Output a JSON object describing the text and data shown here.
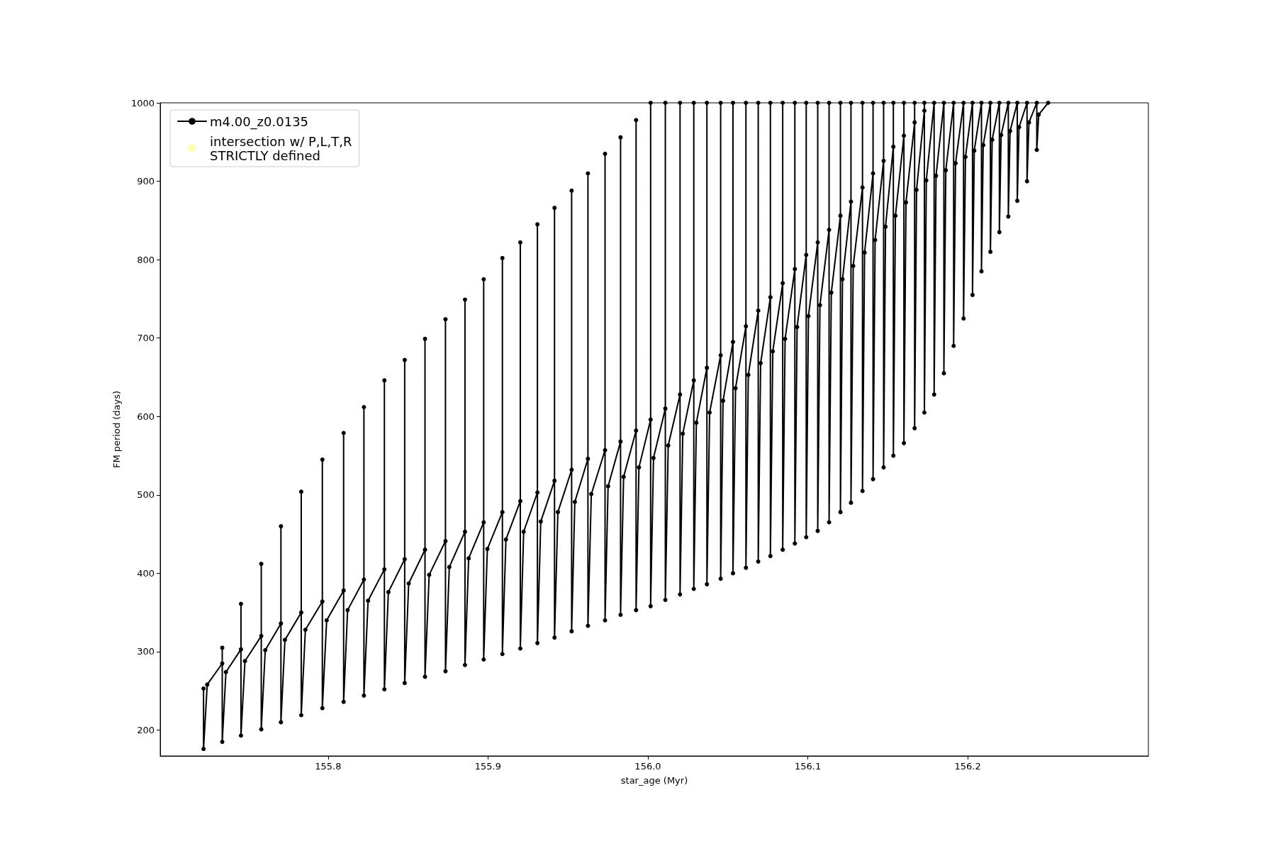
{
  "chart_data": {
    "type": "line",
    "xlabel": "star_age (Myr)",
    "ylabel": "FM period (days)",
    "xlim": [
      155.695,
      156.313
    ],
    "ylim": [
      167,
      1000
    ],
    "xticks": [
      155.8,
      155.9,
      {
        "value": 156,
        "label": "156.0"
      },
      156.1,
      156.2
    ],
    "yticks": [
      200,
      300,
      400,
      500,
      600,
      700,
      800,
      900,
      1000
    ],
    "grid": false,
    "legend": "top left",
    "marker": "circle",
    "line_style": "solid",
    "series": [
      {
        "name": "m4.00_z0.0135",
        "color": "#000000",
        "x": [
          155.7221,
          155.7221,
          155.7244,
          155.7338,
          155.7338,
          155.7338,
          155.7361,
          155.7455,
          155.7455,
          155.7455,
          155.748,
          155.7582,
          155.7582,
          155.7582,
          155.7607,
          155.7705,
          155.7705,
          155.7705,
          155.773,
          155.7832,
          155.7832,
          155.7832,
          155.7858,
          155.7964,
          155.7964,
          155.7964,
          155.7991,
          155.8097,
          155.8097,
          155.8097,
          155.8122,
          155.8224,
          155.8224,
          155.8224,
          155.825,
          155.8352,
          155.8352,
          155.8352,
          155.8377,
          155.8479,
          155.8479,
          155.8479,
          155.8504,
          155.8606,
          155.8606,
          155.8606,
          155.8632,
          155.8734,
          155.8734,
          155.8734,
          155.8758,
          155.8856,
          155.8856,
          155.8856,
          155.8879,
          155.8973,
          155.8973,
          155.8973,
          155.8996,
          155.909,
          155.909,
          155.909,
          155.9112,
          155.9202,
          155.9202,
          155.9202,
          155.9223,
          155.9309,
          155.9309,
          155.9309,
          155.933,
          155.9416,
          155.9416,
          155.9416,
          155.9437,
          155.9523,
          155.9523,
          155.9523,
          155.9543,
          155.9625,
          155.9625,
          155.9625,
          155.9646,
          155.9732,
          155.9732,
          155.9732,
          155.9751,
          155.9829,
          155.9829,
          155.9829,
          155.9848,
          155.9926,
          155.9926,
          155.9926,
          155.9944,
          156.0017,
          156.0017,
          156.0017,
          156.0035,
          156.0109,
          156.0109,
          156.0109,
          156.0127,
          156.0201,
          156.0201,
          156.0201,
          156.0218,
          156.0287,
          156.0287,
          156.0287,
          156.0303,
          156.0369,
          156.0369,
          156.0369,
          156.0386,
          156.0455,
          156.0455,
          156.0455,
          156.047,
          156.0532,
          156.0532,
          156.0532,
          156.0548,
          156.0613,
          156.0613,
          156.0613,
          156.0628,
          156.069,
          156.069,
          156.069,
          156.0705,
          156.0766,
          156.0766,
          156.0766,
          156.0781,
          156.0843,
          156.0843,
          156.0843,
          156.0858,
          156.0919,
          156.0919,
          156.0919,
          156.0933,
          156.099,
          156.099,
          156.099,
          156.1004,
          156.1062,
          156.1062,
          156.1062,
          156.1076,
          156.1133,
          156.1133,
          156.1133,
          156.1147,
          156.1204,
          156.1204,
          156.1204,
          156.1217,
          156.127,
          156.127,
          156.127,
          156.1284,
          156.1342,
          156.1342,
          156.1342,
          156.1355,
          156.1408,
          156.1408,
          156.1408,
          156.1421,
          156.1474,
          156.1474,
          156.1474,
          156.1486,
          156.1535,
          156.1535,
          156.1535,
          156.1548,
          156.1601,
          156.1601,
          156.1601,
          156.1614,
          156.1668,
          156.1668,
          156.1668,
          156.168,
          156.1729,
          156.1729,
          156.1729,
          156.1741,
          156.179,
          156.179,
          156.1802,
          156.1851,
          156.1851,
          156.1863,
          156.1912,
          156.1912,
          156.1924,
          156.1974,
          156.1974,
          156.1986,
          156.203,
          156.203,
          156.2041,
          156.2086,
          156.2086,
          156.2097,
          156.2142,
          156.2142,
          156.2153,
          156.2198,
          156.2198,
          156.2209,
          156.2254,
          156.2254,
          156.2265,
          156.231,
          156.231,
          156.2321,
          156.2371,
          156.2371,
          156.2383,
          156.2432,
          156.2432,
          156.2444,
          156.2503
        ],
        "values": [
          253,
          176,
          258,
          285,
          305,
          185,
          274,
          303,
          361,
          193,
          288,
          320,
          412,
          201,
          302,
          336,
          460,
          210,
          315,
          350,
          504,
          219,
          328,
          364,
          545,
          228,
          340,
          378,
          579,
          236,
          353,
          392,
          612,
          244,
          365,
          405,
          646,
          252,
          376,
          418,
          672,
          260,
          387,
          430,
          699,
          268,
          398,
          441,
          724,
          275,
          408,
          453,
          749,
          283,
          419,
          465,
          775,
          290,
          431,
          478,
          802,
          297,
          443,
          492,
          822,
          304,
          453,
          503,
          845,
          311,
          466,
          518,
          866,
          318,
          478,
          532,
          888,
          326,
          491,
          546,
          910,
          333,
          501,
          557,
          935,
          340,
          511,
          568,
          956,
          347,
          523,
          582,
          978,
          353,
          535,
          596,
          1000,
          358,
          547,
          610,
          1000,
          366,
          563,
          628,
          1000,
          373,
          578,
          646,
          1000,
          380,
          592,
          662,
          1000,
          386,
          605,
          678,
          1000,
          393,
          620,
          695,
          1000,
          400,
          636,
          715,
          1000,
          407,
          653,
          735,
          1000,
          415,
          668,
          752,
          1000,
          422,
          683,
          770,
          1000,
          430,
          699,
          788,
          1000,
          438,
          714,
          806,
          1000,
          446,
          728,
          822,
          1000,
          454,
          742,
          838,
          1000,
          465,
          758,
          856,
          1000,
          478,
          775,
          874,
          1000,
          490,
          792,
          892,
          1000,
          505,
          809,
          910,
          1000,
          520,
          825,
          926,
          1000,
          535,
          842,
          944,
          1000,
          550,
          856,
          958,
          1000,
          566,
          873,
          975,
          1000,
          585,
          889,
          990,
          1000,
          605,
          901,
          1000,
          628,
          907,
          1000,
          655,
          914,
          1000,
          690,
          923,
          1000,
          725,
          931,
          1000,
          755,
          939,
          1000,
          785,
          946,
          1000,
          810,
          953,
          1000,
          835,
          959,
          1000,
          855,
          964,
          1000,
          875,
          969,
          1000,
          900,
          975,
          1000,
          940,
          985,
          1000
        ]
      },
      {
        "name": "intersection w/ P,L,T,R\nSTRICTLY defined",
        "color": "#ffffa0",
        "type": "scatter"
      }
    ]
  }
}
